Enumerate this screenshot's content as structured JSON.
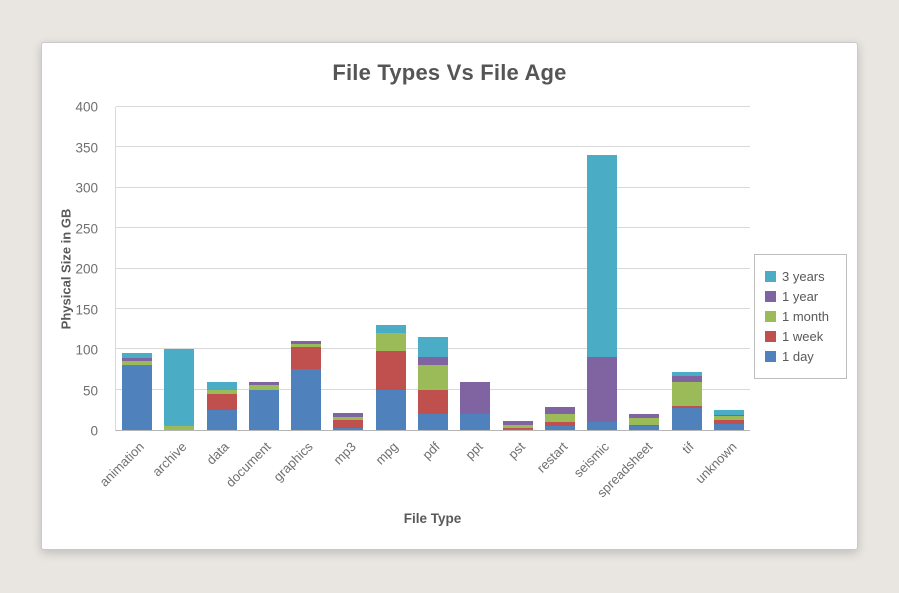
{
  "window": {
    "background_color": "#e9e6e2",
    "card_background_color": "#ffffff"
  },
  "chart_data": {
    "type": "bar",
    "stacked": true,
    "title": "File Types Vs File Age",
    "xlabel": "File Type",
    "ylabel": "Physical Size in GB",
    "ylim": [
      0,
      400
    ],
    "yticks": [
      0,
      50,
      100,
      150,
      200,
      250,
      300,
      350,
      400
    ],
    "grid": true,
    "legend_position": "right",
    "legend_order": [
      "3 years",
      "1 year",
      "1 month",
      "1 week",
      "1 day"
    ],
    "categories": [
      "animation",
      "archive",
      "data",
      "document",
      "graphics",
      "mp3",
      "mpg",
      "pdf",
      "ppt",
      "pst",
      "restart",
      "seismic",
      "spreadsheet",
      "tif",
      "unknown"
    ],
    "series": [
      {
        "name": "1 day",
        "color": "#4F81BD",
        "values": [
          80,
          0,
          25,
          50,
          75,
          2,
          50,
          20,
          20,
          1,
          5,
          10,
          5,
          27,
          7
        ]
      },
      {
        "name": "1 week",
        "color": "#C0504D",
        "values": [
          1,
          0,
          20,
          0,
          28,
          10,
          48,
          30,
          0,
          1,
          5,
          0,
          1,
          3,
          5
        ]
      },
      {
        "name": "1 month",
        "color": "#9BBB59",
        "values": [
          5,
          5,
          5,
          6,
          3,
          4,
          22,
          30,
          0,
          4,
          10,
          0,
          9,
          30,
          5
        ]
      },
      {
        "name": "1 year",
        "color": "#8064A2",
        "values": [
          3,
          0,
          0,
          4,
          4,
          5,
          0,
          10,
          40,
          5,
          8,
          80,
          5,
          7,
          2
        ]
      },
      {
        "name": "3 years",
        "color": "#4BACC6",
        "values": [
          6,
          95,
          10,
          0,
          0,
          0,
          10,
          25,
          0,
          0,
          0,
          250,
          0,
          5,
          6
        ]
      }
    ],
    "totals": [
      95,
      100,
      60,
      60,
      110,
      21,
      130,
      115,
      60,
      11,
      28,
      340,
      20,
      72,
      25
    ],
    "colors": {
      "grid": "#d9d9d9",
      "axis": "#b5b5b5",
      "tick_text": "#6f6f6f",
      "title_text": "#555555",
      "axis_title_text": "#595959"
    }
  }
}
